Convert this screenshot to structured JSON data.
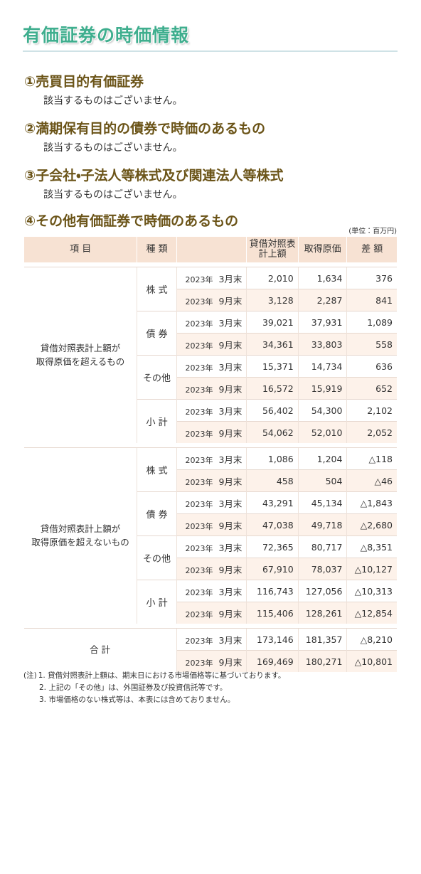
{
  "title": "有価証券の時価情報",
  "sections": [
    {
      "heading": "①売買目的有価証券",
      "text": "該当するものはございません。"
    },
    {
      "heading": "②満期保有目的の債券で時価のあるもの",
      "text": "該当するものはございません。"
    },
    {
      "heading": "③子会社・子法人等株式及び関連法人等株式",
      "text": "該当するものはございません。"
    }
  ],
  "table_section": {
    "heading": "④その他有価証券で時価のあるもの",
    "unit": "(単位：百万円)"
  },
  "table": {
    "headers": [
      {
        "lines": [
          "項 目"
        ]
      },
      {
        "lines": [
          "種 類"
        ]
      },
      {
        "lines": [
          ""
        ]
      },
      {
        "lines": [
          "貸借対照表",
          "計上額"
        ]
      },
      {
        "lines": [
          "取得原価"
        ]
      },
      {
        "lines": [
          "差 額"
        ]
      }
    ],
    "groups": [
      {
        "lines": [
          "貸借対照表計上額が",
          "取得原価を超えるもの"
        ],
        "types": [
          {
            "name": "株 式",
            "rows": [
              [
                "2023年",
                "3月末",
                "2,010",
                "1,634",
                "376"
              ],
              [
                "2023年",
                "9月末",
                "3,128",
                "2,287",
                "841"
              ]
            ]
          },
          {
            "name": "債 券",
            "rows": [
              [
                "2023年",
                "3月末",
                "39,021",
                "37,931",
                "1,089"
              ],
              [
                "2023年",
                "9月末",
                "34,361",
                "33,803",
                "558"
              ]
            ]
          },
          {
            "name": "その他",
            "rows": [
              [
                "2023年",
                "3月末",
                "15,371",
                "14,734",
                "636"
              ],
              [
                "2023年",
                "9月末",
                "16,572",
                "15,919",
                "652"
              ]
            ]
          },
          {
            "name": "小 計",
            "rows": [
              [
                "2023年",
                "3月末",
                "56,402",
                "54,300",
                "2,102"
              ],
              [
                "2023年",
                "9月末",
                "54,062",
                "52,010",
                "2,052"
              ]
            ]
          }
        ]
      },
      {
        "lines": [
          "貸借対照表計上額が",
          "取得原価を超えないもの"
        ],
        "types": [
          {
            "name": "株 式",
            "rows": [
              [
                "2023年",
                "3月末",
                "1,086",
                "1,204",
                "△118"
              ],
              [
                "2023年",
                "9月末",
                "458",
                "504",
                "△46"
              ]
            ]
          },
          {
            "name": "債 券",
            "rows": [
              [
                "2023年",
                "3月末",
                "43,291",
                "45,134",
                "△1,843"
              ],
              [
                "2023年",
                "9月末",
                "47,038",
                "49,718",
                "△2,680"
              ]
            ]
          },
          {
            "name": "その他",
            "rows": [
              [
                "2023年",
                "3月末",
                "72,365",
                "80,717",
                "△8,351"
              ],
              [
                "2023年",
                "9月末",
                "67,910",
                "78,037",
                "△10,127"
              ]
            ]
          },
          {
            "name": "小 計",
            "rows": [
              [
                "2023年",
                "3月末",
                "116,743",
                "127,056",
                "△10,313"
              ],
              [
                "2023年",
                "9月末",
                "115,406",
                "128,261",
                "△12,854"
              ]
            ]
          }
        ]
      }
    ],
    "total": {
      "label": "合 計",
      "rows": [
        [
          "2023年",
          "3月末",
          "173,146",
          "181,357",
          "△8,210"
        ],
        [
          "2023年",
          "9月末",
          "169,469",
          "180,271",
          "△10,801"
        ]
      ]
    }
  },
  "notes": {
    "prefix": "(注)",
    "items": [
      "1. 貸借対照表計上額は、期末日における市場価格等に基づいております。",
      "2. 上記の「その他」は、外国証券及び投資信託等です。",
      "3. 市場価格のない株式等は、本表には含めておりません。"
    ]
  }
}
